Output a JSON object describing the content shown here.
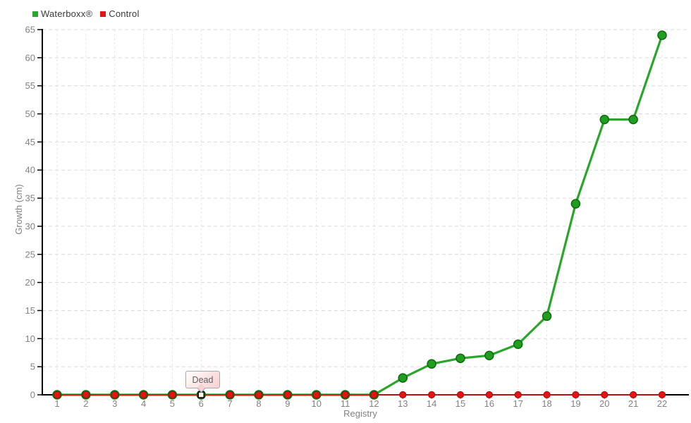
{
  "legend": {
    "items": [
      {
        "label": "Waterboxx®",
        "color": "#2aa62a"
      },
      {
        "label": "Control",
        "color": "#e31414"
      }
    ]
  },
  "tooltip": {
    "label": "Dead",
    "target_x": 6
  },
  "chart_data": {
    "type": "line",
    "x": [
      1,
      2,
      3,
      4,
      5,
      6,
      7,
      8,
      9,
      10,
      11,
      12,
      13,
      14,
      15,
      16,
      17,
      18,
      19,
      20,
      21,
      22
    ],
    "series": [
      {
        "name": "Waterboxx®",
        "line_color": "#2aa62a",
        "marker_fill": "#1f9e1f",
        "marker_stroke": "#0b6c0b",
        "values": [
          0,
          0,
          0,
          0,
          0,
          0,
          0,
          0,
          0,
          0,
          0,
          0,
          3,
          5.5,
          6.5,
          7,
          9,
          14,
          34,
          49,
          49,
          64
        ]
      },
      {
        "name": "Control",
        "line_color": "#dd1111",
        "marker_fill": "#e41414",
        "marker_stroke": "#a30a0a",
        "values": [
          0,
          0,
          0,
          0,
          0,
          0,
          0,
          0,
          0,
          0,
          0,
          0,
          0,
          0,
          0,
          0,
          0,
          0,
          0,
          0,
          0,
          0
        ]
      }
    ],
    "xlabel": "Registry",
    "ylabel": "Growth (cm)",
    "ylim": [
      0,
      65
    ],
    "ytick_step": 5,
    "grid": true,
    "legend_position": "top-left",
    "annotations": [
      {
        "text": "Dead",
        "x": 6,
        "y": 0
      }
    ],
    "hovered_point": {
      "series": "Control",
      "x": 6,
      "y": 0
    }
  },
  "colors": {
    "axis": "#000000",
    "grid_horizontal": "#d9d9d9",
    "grid_vertical": "#e6e6e6",
    "tick_label": "#828282",
    "axis_title": "#828282",
    "x_tick": "#999999"
  }
}
